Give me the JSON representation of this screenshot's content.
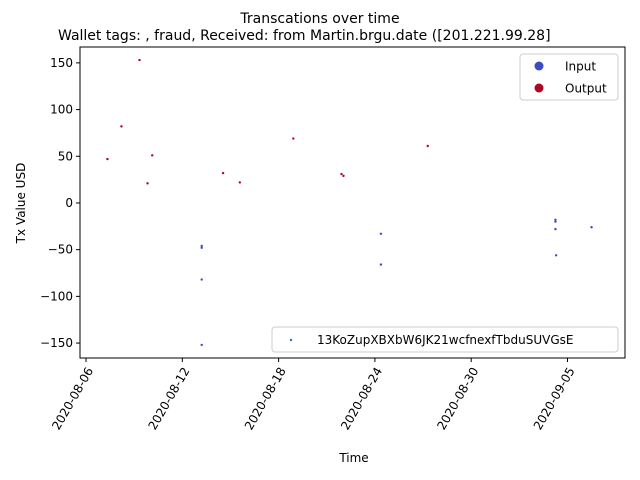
{
  "chart_data": {
    "type": "scatter",
    "title": "Transcations over time",
    "subtitle": "Wallet tags: , fraud, Received: from Martin.brgu.date ([201.221.99.28]",
    "xlabel": "Time",
    "ylabel": "Tx Value USD",
    "xlim": [
      "2020-08-05T15:00",
      "2020-09-08T14:00"
    ],
    "ylim": [
      -166,
      167
    ],
    "x_ticks": [
      "2020-08-06",
      "2020-08-12",
      "2020-08-18",
      "2020-08-24",
      "2020-08-30",
      "2020-09-05"
    ],
    "y_ticks": [
      150,
      100,
      50,
      0,
      -50,
      -100,
      -150
    ],
    "grid": false,
    "legend_upper": {
      "placement": "top-right",
      "entries": [
        {
          "label": "Input",
          "color": "#3b4cc0"
        },
        {
          "label": "Output",
          "color": "#b40426"
        }
      ]
    },
    "legend_lower": {
      "placement": "bottom-right",
      "label": "13KoZupXBXbW6JK21wcfnexfTbduSUVGsE",
      "color": "#1f77b4"
    },
    "series": [
      {
        "name": "Output",
        "color": "#b40426",
        "points": [
          {
            "x": "2020-08-07T08:00",
            "y": 47
          },
          {
            "x": "2020-08-08T05:00",
            "y": 82
          },
          {
            "x": "2020-08-09T08:00",
            "y": 153
          },
          {
            "x": "2020-08-09T20:00",
            "y": 21
          },
          {
            "x": "2020-08-10T03:00",
            "y": 51
          },
          {
            "x": "2020-08-14T13:00",
            "y": 32
          },
          {
            "x": "2020-08-15T14:00",
            "y": 22
          },
          {
            "x": "2020-08-18T22:00",
            "y": 69
          },
          {
            "x": "2020-08-21T22:00",
            "y": 31
          },
          {
            "x": "2020-08-22T01:00",
            "y": 29
          },
          {
            "x": "2020-08-27T07:00",
            "y": 61
          }
        ]
      },
      {
        "name": "Input",
        "color": "#3b4cc0",
        "points": [
          {
            "x": "2020-08-13T05:00",
            "y": -46
          },
          {
            "x": "2020-08-13T05:00",
            "y": -48
          },
          {
            "x": "2020-08-13T05:00",
            "y": -82
          },
          {
            "x": "2020-08-13T05:00",
            "y": -152
          },
          {
            "x": "2020-08-24T09:00",
            "y": -33
          },
          {
            "x": "2020-08-24T09:00",
            "y": -66
          },
          {
            "x": "2020-09-04T06:00",
            "y": -18
          },
          {
            "x": "2020-09-04T06:00",
            "y": -20
          },
          {
            "x": "2020-09-04T06:00",
            "y": -28
          },
          {
            "x": "2020-09-04T07:00",
            "y": -56
          },
          {
            "x": "2020-09-06T12:00",
            "y": -26
          }
        ]
      }
    ]
  }
}
